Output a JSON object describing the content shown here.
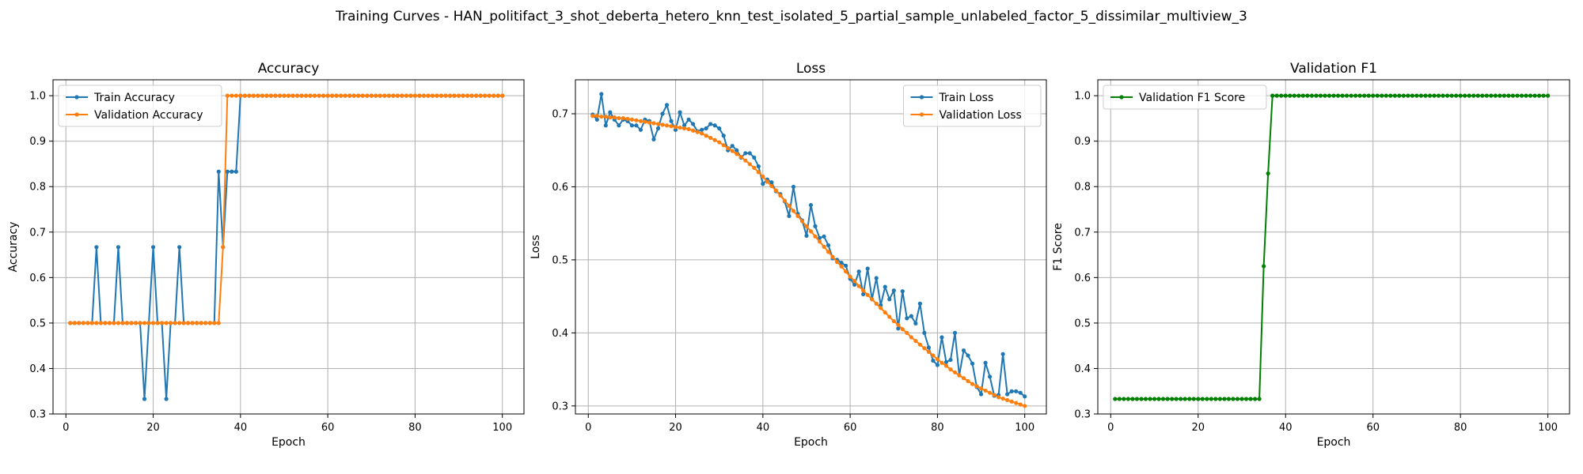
{
  "figure": {
    "suptitle": "Training Curves - HAN_politifact_3_shot_deberta_hetero_knn_test_isolated_5_partial_sample_unlabeled_factor_5_dissimilar_multiview_3"
  },
  "chart_data": [
    {
      "type": "line",
      "title": "Accuracy",
      "xlabel": "Epoch",
      "ylabel": "Accuracy",
      "xlim": [
        -2.95,
        104.95
      ],
      "ylim": [
        0.3,
        1.035
      ],
      "xticks": [
        0,
        20,
        40,
        60,
        80,
        100
      ],
      "yticks": [
        0.3,
        0.4,
        0.5,
        0.6,
        0.7,
        0.8,
        0.9,
        1.0
      ],
      "grid": true,
      "legend_position": "upper-left",
      "series": [
        {
          "name": "Train Accuracy",
          "color": "#1f77b4",
          "x": [
            1,
            2,
            3,
            4,
            5,
            6,
            7,
            8,
            9,
            10,
            11,
            12,
            13,
            14,
            15,
            16,
            17,
            18,
            19,
            20,
            21,
            22,
            23,
            24,
            25,
            26,
            27,
            28,
            29,
            30,
            31,
            32,
            33,
            34,
            35,
            36,
            37,
            38,
            39,
            40,
            41,
            42,
            43,
            44,
            45,
            46,
            47,
            48,
            49,
            50,
            51,
            52,
            53,
            54,
            55,
            56,
            57,
            58,
            59,
            60,
            61,
            62,
            63,
            64,
            65,
            66,
            67,
            68,
            69,
            70,
            71,
            72,
            73,
            74,
            75,
            76,
            77,
            78,
            79,
            80,
            81,
            82,
            83,
            84,
            85,
            86,
            87,
            88,
            89,
            90,
            91,
            92,
            93,
            94,
            95,
            96,
            97,
            98,
            99,
            100
          ],
          "y": [
            0.5,
            0.5,
            0.5,
            0.5,
            0.5,
            0.5,
            0.667,
            0.5,
            0.5,
            0.5,
            0.5,
            0.667,
            0.5,
            0.5,
            0.5,
            0.5,
            0.5,
            0.333,
            0.5,
            0.667,
            0.5,
            0.5,
            0.333,
            0.5,
            0.5,
            0.667,
            0.5,
            0.5,
            0.5,
            0.5,
            0.5,
            0.5,
            0.5,
            0.5,
            0.833,
            0.667,
            0.833,
            0.833,
            0.833,
            1.0,
            1.0,
            1.0,
            1.0,
            1.0,
            1.0,
            1.0,
            1.0,
            1.0,
            1.0,
            1.0,
            1.0,
            1.0,
            1.0,
            1.0,
            1.0,
            1.0,
            1.0,
            1.0,
            1.0,
            1.0,
            1.0,
            1.0,
            1.0,
            1.0,
            1.0,
            1.0,
            1.0,
            1.0,
            1.0,
            1.0,
            1.0,
            1.0,
            1.0,
            1.0,
            1.0,
            1.0,
            1.0,
            1.0,
            1.0,
            1.0,
            1.0,
            1.0,
            1.0,
            1.0,
            1.0,
            1.0,
            1.0,
            1.0,
            1.0,
            1.0,
            1.0,
            1.0,
            1.0,
            1.0,
            1.0,
            1.0,
            1.0,
            1.0,
            1.0,
            1.0
          ]
        },
        {
          "name": "Validation Accuracy",
          "color": "#ff7f0e",
          "x": [
            1,
            2,
            3,
            4,
            5,
            6,
            7,
            8,
            9,
            10,
            11,
            12,
            13,
            14,
            15,
            16,
            17,
            18,
            19,
            20,
            21,
            22,
            23,
            24,
            25,
            26,
            27,
            28,
            29,
            30,
            31,
            32,
            33,
            34,
            35,
            36,
            37,
            38,
            39,
            40,
            41,
            42,
            43,
            44,
            45,
            46,
            47,
            48,
            49,
            50,
            51,
            52,
            53,
            54,
            55,
            56,
            57,
            58,
            59,
            60,
            61,
            62,
            63,
            64,
            65,
            66,
            67,
            68,
            69,
            70,
            71,
            72,
            73,
            74,
            75,
            76,
            77,
            78,
            79,
            80,
            81,
            82,
            83,
            84,
            85,
            86,
            87,
            88,
            89,
            90,
            91,
            92,
            93,
            94,
            95,
            96,
            97,
            98,
            99,
            100
          ],
          "y": [
            0.5,
            0.5,
            0.5,
            0.5,
            0.5,
            0.5,
            0.5,
            0.5,
            0.5,
            0.5,
            0.5,
            0.5,
            0.5,
            0.5,
            0.5,
            0.5,
            0.5,
            0.5,
            0.5,
            0.5,
            0.5,
            0.5,
            0.5,
            0.5,
            0.5,
            0.5,
            0.5,
            0.5,
            0.5,
            0.5,
            0.5,
            0.5,
            0.5,
            0.5,
            0.5,
            0.667,
            1.0,
            1.0,
            1.0,
            1.0,
            1.0,
            1.0,
            1.0,
            1.0,
            1.0,
            1.0,
            1.0,
            1.0,
            1.0,
            1.0,
            1.0,
            1.0,
            1.0,
            1.0,
            1.0,
            1.0,
            1.0,
            1.0,
            1.0,
            1.0,
            1.0,
            1.0,
            1.0,
            1.0,
            1.0,
            1.0,
            1.0,
            1.0,
            1.0,
            1.0,
            1.0,
            1.0,
            1.0,
            1.0,
            1.0,
            1.0,
            1.0,
            1.0,
            1.0,
            1.0,
            1.0,
            1.0,
            1.0,
            1.0,
            1.0,
            1.0,
            1.0,
            1.0,
            1.0,
            1.0,
            1.0,
            1.0,
            1.0,
            1.0,
            1.0,
            1.0,
            1.0,
            1.0,
            1.0,
            1.0
          ]
        }
      ]
    },
    {
      "type": "line",
      "title": "Loss",
      "xlabel": "Epoch",
      "ylabel": "Loss",
      "xlim": [
        -2.95,
        104.95
      ],
      "ylim": [
        0.289,
        0.7465
      ],
      "xticks": [
        0,
        20,
        40,
        60,
        80,
        100
      ],
      "yticks": [
        0.3,
        0.4,
        0.5,
        0.6,
        0.7
      ],
      "grid": true,
      "legend_position": "upper-right",
      "series": [
        {
          "name": "Train Loss",
          "color": "#1f77b4",
          "x": [
            1,
            2,
            3,
            4,
            5,
            6,
            7,
            8,
            9,
            10,
            11,
            12,
            13,
            14,
            15,
            16,
            17,
            18,
            19,
            20,
            21,
            22,
            23,
            24,
            25,
            26,
            27,
            28,
            29,
            30,
            31,
            32,
            33,
            34,
            35,
            36,
            37,
            38,
            39,
            40,
            41,
            42,
            43,
            44,
            45,
            46,
            47,
            48,
            49,
            50,
            51,
            52,
            53,
            54,
            55,
            56,
            57,
            58,
            59,
            60,
            61,
            62,
            63,
            64,
            65,
            66,
            67,
            68,
            69,
            70,
            71,
            72,
            73,
            74,
            75,
            76,
            77,
            78,
            79,
            80,
            81,
            82,
            83,
            84,
            85,
            86,
            87,
            88,
            89,
            90,
            91,
            92,
            93,
            94,
            95,
            96,
            97,
            98,
            99,
            100
          ],
          "y": [
            0.699,
            0.692,
            0.727,
            0.684,
            0.702,
            0.692,
            0.684,
            0.692,
            0.69,
            0.684,
            0.684,
            0.678,
            0.692,
            0.69,
            0.665,
            0.68,
            0.7,
            0.712,
            0.69,
            0.678,
            0.702,
            0.684,
            0.692,
            0.686,
            0.676,
            0.678,
            0.68,
            0.686,
            0.684,
            0.68,
            0.67,
            0.65,
            0.656,
            0.65,
            0.64,
            0.646,
            0.646,
            0.64,
            0.628,
            0.604,
            0.61,
            0.606,
            0.594,
            0.59,
            0.58,
            0.56,
            0.6,
            0.563,
            0.554,
            0.533,
            0.575,
            0.546,
            0.53,
            0.532,
            0.52,
            0.502,
            0.5,
            0.496,
            0.492,
            0.474,
            0.466,
            0.484,
            0.453,
            0.488,
            0.446,
            0.475,
            0.438,
            0.463,
            0.446,
            0.458,
            0.406,
            0.457,
            0.42,
            0.423,
            0.413,
            0.44,
            0.4,
            0.38,
            0.362,
            0.356,
            0.394,
            0.36,
            0.363,
            0.4,
            0.342,
            0.376,
            0.369,
            0.358,
            0.326,
            0.316,
            0.359,
            0.34,
            0.314,
            0.315,
            0.371,
            0.316,
            0.32,
            0.32,
            0.318,
            0.313
          ]
        },
        {
          "name": "Validation Loss",
          "color": "#ff7f0e",
          "x": [
            1,
            2,
            3,
            4,
            5,
            6,
            7,
            8,
            9,
            10,
            11,
            12,
            13,
            14,
            15,
            16,
            17,
            18,
            19,
            20,
            21,
            22,
            23,
            24,
            25,
            26,
            27,
            28,
            29,
            30,
            31,
            32,
            33,
            34,
            35,
            36,
            37,
            38,
            39,
            40,
            41,
            42,
            43,
            44,
            45,
            46,
            47,
            48,
            49,
            50,
            51,
            52,
            53,
            54,
            55,
            56,
            57,
            58,
            59,
            60,
            61,
            62,
            63,
            64,
            65,
            66,
            67,
            68,
            69,
            70,
            71,
            72,
            73,
            74,
            75,
            76,
            77,
            78,
            79,
            80,
            81,
            82,
            83,
            84,
            85,
            86,
            87,
            88,
            89,
            90,
            91,
            92,
            93,
            94,
            95,
            96,
            97,
            98,
            99,
            100
          ],
          "y": [
            0.697,
            0.697,
            0.696,
            0.696,
            0.695,
            0.695,
            0.694,
            0.694,
            0.693,
            0.692,
            0.691,
            0.69,
            0.689,
            0.688,
            0.687,
            0.686,
            0.685,
            0.684,
            0.683,
            0.682,
            0.681,
            0.68,
            0.679,
            0.677,
            0.675,
            0.673,
            0.67,
            0.667,
            0.664,
            0.661,
            0.657,
            0.653,
            0.649,
            0.645,
            0.641,
            0.636,
            0.631,
            0.626,
            0.62,
            0.614,
            0.607,
            0.601,
            0.595,
            0.588,
            0.581,
            0.574,
            0.567,
            0.56,
            0.553,
            0.546,
            0.539,
            0.532,
            0.525,
            0.518,
            0.511,
            0.504,
            0.497,
            0.491,
            0.484,
            0.477,
            0.471,
            0.464,
            0.458,
            0.452,
            0.446,
            0.44,
            0.434,
            0.428,
            0.422,
            0.416,
            0.411,
            0.405,
            0.4,
            0.394,
            0.389,
            0.384,
            0.379,
            0.374,
            0.369,
            0.364,
            0.359,
            0.355,
            0.35,
            0.346,
            0.342,
            0.338,
            0.334,
            0.33,
            0.327,
            0.324,
            0.321,
            0.318,
            0.315,
            0.312,
            0.31,
            0.308,
            0.306,
            0.304,
            0.302,
            0.3
          ]
        }
      ]
    },
    {
      "type": "line",
      "title": "Validation F1",
      "xlabel": "Epoch",
      "ylabel": "F1 Score",
      "xlim": [
        -2.95,
        104.95
      ],
      "ylim": [
        0.3,
        1.035
      ],
      "xticks": [
        0,
        20,
        40,
        60,
        80,
        100
      ],
      "yticks": [
        0.3,
        0.4,
        0.5,
        0.6,
        0.7,
        0.8,
        0.9,
        1.0
      ],
      "grid": true,
      "legend_position": "upper-left",
      "series": [
        {
          "name": "Validation F1 Score",
          "color": "#008000",
          "x": [
            1,
            2,
            3,
            4,
            5,
            6,
            7,
            8,
            9,
            10,
            11,
            12,
            13,
            14,
            15,
            16,
            17,
            18,
            19,
            20,
            21,
            22,
            23,
            24,
            25,
            26,
            27,
            28,
            29,
            30,
            31,
            32,
            33,
            34,
            35,
            36,
            37,
            38,
            39,
            40,
            41,
            42,
            43,
            44,
            45,
            46,
            47,
            48,
            49,
            50,
            51,
            52,
            53,
            54,
            55,
            56,
            57,
            58,
            59,
            60,
            61,
            62,
            63,
            64,
            65,
            66,
            67,
            68,
            69,
            70,
            71,
            72,
            73,
            74,
            75,
            76,
            77,
            78,
            79,
            80,
            81,
            82,
            83,
            84,
            85,
            86,
            87,
            88,
            89,
            90,
            91,
            92,
            93,
            94,
            95,
            96,
            97,
            98,
            99,
            100
          ],
          "y": [
            0.333,
            0.333,
            0.333,
            0.333,
            0.333,
            0.333,
            0.333,
            0.333,
            0.333,
            0.333,
            0.333,
            0.333,
            0.333,
            0.333,
            0.333,
            0.333,
            0.333,
            0.333,
            0.333,
            0.333,
            0.333,
            0.333,
            0.333,
            0.333,
            0.333,
            0.333,
            0.333,
            0.333,
            0.333,
            0.333,
            0.333,
            0.333,
            0.333,
            0.333,
            0.625,
            0.829,
            1.0,
            1.0,
            1.0,
            1.0,
            1.0,
            1.0,
            1.0,
            1.0,
            1.0,
            1.0,
            1.0,
            1.0,
            1.0,
            1.0,
            1.0,
            1.0,
            1.0,
            1.0,
            1.0,
            1.0,
            1.0,
            1.0,
            1.0,
            1.0,
            1.0,
            1.0,
            1.0,
            1.0,
            1.0,
            1.0,
            1.0,
            1.0,
            1.0,
            1.0,
            1.0,
            1.0,
            1.0,
            1.0,
            1.0,
            1.0,
            1.0,
            1.0,
            1.0,
            1.0,
            1.0,
            1.0,
            1.0,
            1.0,
            1.0,
            1.0,
            1.0,
            1.0,
            1.0,
            1.0,
            1.0,
            1.0,
            1.0,
            1.0,
            1.0,
            1.0,
            1.0,
            1.0,
            1.0,
            1.0
          ]
        }
      ]
    }
  ]
}
